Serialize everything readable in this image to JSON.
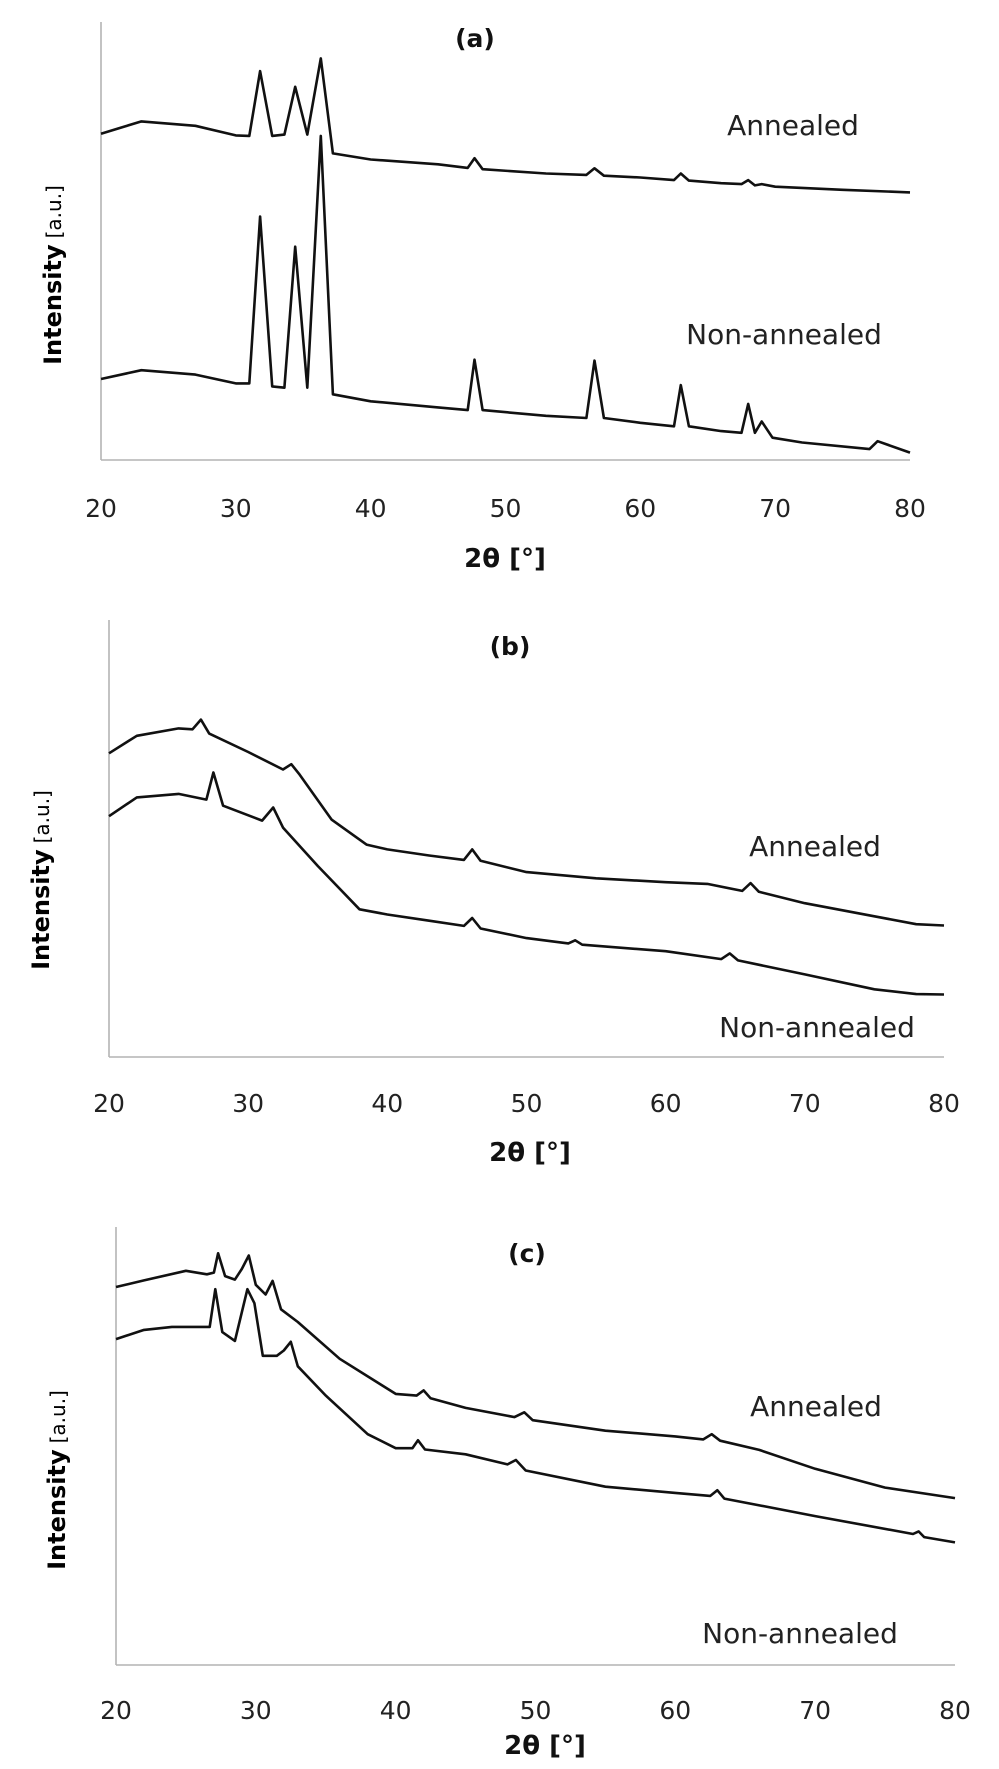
{
  "chart_data": [
    {
      "type": "line",
      "title": "(a)",
      "xlabel": "2θ [°]",
      "ylabel": "Intensity",
      "ylabel_unit": "[a.u.]",
      "xlim": [
        20,
        80
      ],
      "ylim": [
        0,
        1
      ],
      "xticks": [
        "20",
        "30",
        "40",
        "50",
        "60",
        "70",
        "80"
      ],
      "yticks": [],
      "grid": false,
      "series": [
        {
          "name": "Annealed",
          "x": [
            20,
            23,
            27,
            30,
            31,
            31.8,
            32.7,
            33.6,
            34.4,
            35.3,
            36.3,
            37.2,
            40,
            45,
            47.2,
            47.7,
            48.3,
            53,
            56,
            56.6,
            57.3,
            60,
            62.5,
            63,
            63.6,
            66,
            67.5,
            68,
            68.5,
            69,
            70,
            75,
            80
          ],
          "values": [
            0.745,
            0.773,
            0.763,
            0.741,
            0.74,
            0.888,
            0.74,
            0.743,
            0.852,
            0.743,
            0.917,
            0.7,
            0.686,
            0.675,
            0.667,
            0.689,
            0.664,
            0.654,
            0.651,
            0.666,
            0.649,
            0.645,
            0.639,
            0.654,
            0.638,
            0.632,
            0.63,
            0.639,
            0.627,
            0.63,
            0.624,
            0.617,
            0.611
          ]
        },
        {
          "name": "Non-annealed",
          "x": [
            20,
            23,
            27,
            30,
            31,
            31.8,
            32.7,
            33.6,
            34.4,
            35.3,
            36.3,
            37.2,
            40,
            45,
            47.2,
            47.7,
            48.3,
            53,
            56,
            56.6,
            57.3,
            60,
            62.5,
            63,
            63.6,
            66,
            67.5,
            68,
            68.5,
            69,
            69.8,
            72,
            77,
            77.6,
            80
          ],
          "values": [
            0.185,
            0.205,
            0.195,
            0.175,
            0.175,
            0.556,
            0.168,
            0.165,
            0.487,
            0.165,
            0.74,
            0.15,
            0.134,
            0.12,
            0.114,
            0.229,
            0.114,
            0.101,
            0.096,
            0.227,
            0.096,
            0.085,
            0.077,
            0.171,
            0.077,
            0.066,
            0.062,
            0.128,
            0.062,
            0.088,
            0.051,
            0.04,
            0.025,
            0.043,
            0.017
          ]
        }
      ],
      "annotations": [
        {
          "text": "Annealed",
          "series": "Annealed"
        },
        {
          "text": "Non-annealed",
          "series": "Non-annealed"
        }
      ]
    },
    {
      "type": "line",
      "title": "(b)",
      "xlabel": "2θ [°]",
      "ylabel": "Intensity",
      "ylabel_unit": "[a.u.]",
      "xlim": [
        20,
        80
      ],
      "ylim": [
        0,
        1
      ],
      "xticks": [
        "20",
        "30",
        "40",
        "50",
        "60",
        "70",
        "80"
      ],
      "yticks": [],
      "grid": false,
      "series": [
        {
          "name": "Annealed",
          "x": [
            20,
            22,
            25,
            26,
            26.6,
            27.2,
            30,
            32.5,
            33.1,
            33.7,
            36,
            38.5,
            40,
            43,
            45.5,
            46.1,
            46.7,
            50,
            55,
            60,
            63,
            65.5,
            66.1,
            66.7,
            70,
            75,
            78,
            80
          ],
          "values": [
            0.695,
            0.735,
            0.752,
            0.75,
            0.772,
            0.74,
            0.698,
            0.658,
            0.67,
            0.646,
            0.543,
            0.486,
            0.475,
            0.461,
            0.451,
            0.475,
            0.449,
            0.423,
            0.409,
            0.4,
            0.396,
            0.38,
            0.398,
            0.378,
            0.352,
            0.322,
            0.304,
            0.301
          ]
        },
        {
          "name": "Non-annealed",
          "x": [
            20,
            22,
            25,
            27,
            27.5,
            28.2,
            31,
            31.8,
            32.5,
            35,
            38,
            40,
            43,
            45.5,
            46.1,
            46.7,
            50,
            53,
            53.5,
            54,
            60,
            64,
            64.6,
            65.2,
            70,
            75,
            78,
            80
          ],
          "values": [
            0.551,
            0.594,
            0.602,
            0.589,
            0.651,
            0.575,
            0.541,
            0.571,
            0.525,
            0.437,
            0.338,
            0.326,
            0.312,
            0.3,
            0.318,
            0.294,
            0.272,
            0.26,
            0.267,
            0.257,
            0.242,
            0.224,
            0.237,
            0.221,
            0.189,
            0.155,
            0.144,
            0.143
          ]
        }
      ],
      "annotations": [
        {
          "text": "Annealed",
          "series": "Annealed"
        },
        {
          "text": "Non-annealed",
          "series": "Non-annealed"
        }
      ]
    },
    {
      "type": "line",
      "title": "(c)",
      "xlabel": "2θ [°]",
      "ylabel": "Intensity",
      "ylabel_unit": "[a.u.]",
      "xlim": [
        20,
        80
      ],
      "ylim": [
        0,
        1
      ],
      "xticks": [
        "20",
        "30",
        "40",
        "50",
        "60",
        "70",
        "80"
      ],
      "yticks": [],
      "grid": false,
      "series": [
        {
          "name": "Annealed",
          "x": [
            20,
            22,
            25,
            26.5,
            27,
            27.3,
            27.8,
            28.5,
            29,
            29.5,
            30,
            30.7,
            31.2,
            31.8,
            33,
            36,
            40,
            41.5,
            42,
            42.5,
            45,
            48.5,
            49.2,
            49.8,
            55,
            60,
            62,
            62.6,
            63.2,
            66,
            70,
            75,
            80
          ],
          "values": [
            0.863,
            0.878,
            0.9,
            0.892,
            0.896,
            0.94,
            0.888,
            0.88,
            0.904,
            0.935,
            0.868,
            0.846,
            0.877,
            0.812,
            0.783,
            0.699,
            0.619,
            0.615,
            0.627,
            0.609,
            0.587,
            0.566,
            0.577,
            0.559,
            0.535,
            0.522,
            0.515,
            0.527,
            0.512,
            0.491,
            0.448,
            0.405,
            0.381
          ]
        },
        {
          "name": "Non-annealed",
          "x": [
            20,
            22,
            24,
            26,
            26.7,
            27.1,
            27.6,
            28.5,
            29.4,
            29.9,
            30.5,
            31.5,
            32,
            32.5,
            33,
            35,
            38,
            40,
            41.2,
            41.6,
            42.1,
            45,
            48,
            48.6,
            49.3,
            55,
            60,
            62.5,
            63,
            63.5,
            70,
            77,
            77.4,
            77.8,
            80
          ],
          "values": [
            0.744,
            0.765,
            0.772,
            0.772,
            0.772,
            0.858,
            0.76,
            0.74,
            0.858,
            0.826,
            0.706,
            0.706,
            0.718,
            0.738,
            0.682,
            0.615,
            0.527,
            0.495,
            0.495,
            0.513,
            0.492,
            0.481,
            0.458,
            0.468,
            0.444,
            0.407,
            0.393,
            0.386,
            0.399,
            0.38,
            0.34,
            0.299,
            0.305,
            0.292,
            0.28
          ]
        }
      ],
      "annotations": [
        {
          "text": "Annealed",
          "series": "Annealed"
        },
        {
          "text": "Non-annealed",
          "series": "Non-annealed"
        }
      ]
    }
  ]
}
